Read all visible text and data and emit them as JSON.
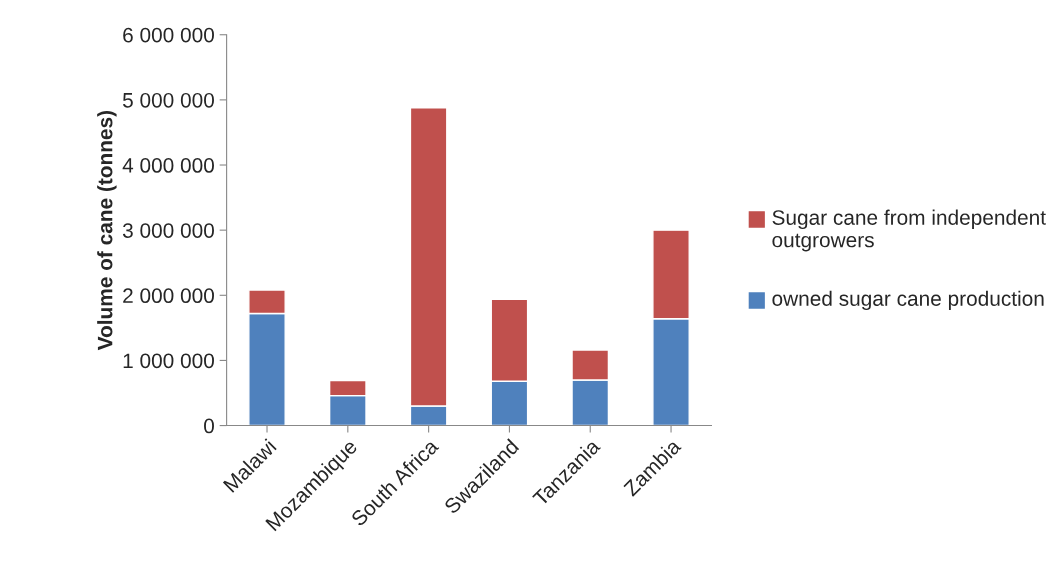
{
  "chart_data": {
    "type": "bar",
    "stacked": true,
    "ylabel": "Volume of cane (tonnes)",
    "categories": [
      "Malawi",
      "Mozambique",
      "South Africa",
      "Swaziland",
      "Tanzania",
      "Zambia"
    ],
    "series": [
      {
        "name": "owned sugar cane production",
        "color": "#4f81bd",
        "values": [
          1720000,
          460000,
          300000,
          680000,
          700000,
          1640000
        ]
      },
      {
        "name": "Sugar cane from independent outgrowers",
        "color": "#c0504d",
        "values": [
          360000,
          230000,
          4580000,
          1260000,
          460000,
          1360000
        ]
      }
    ],
    "ylim": [
      0,
      6000000
    ],
    "yticks": [
      {
        "value": 0,
        "label": "0"
      },
      {
        "value": 1000000,
        "label": "1 000 000"
      },
      {
        "value": 2000000,
        "label": "2 000 000"
      },
      {
        "value": 3000000,
        "label": "3 000 000"
      },
      {
        "value": 4000000,
        "label": "4 000 000"
      },
      {
        "value": 5000000,
        "label": "5 000 000"
      },
      {
        "value": 6000000,
        "label": "6 000 000"
      }
    ],
    "grid": false,
    "legend": "right"
  }
}
